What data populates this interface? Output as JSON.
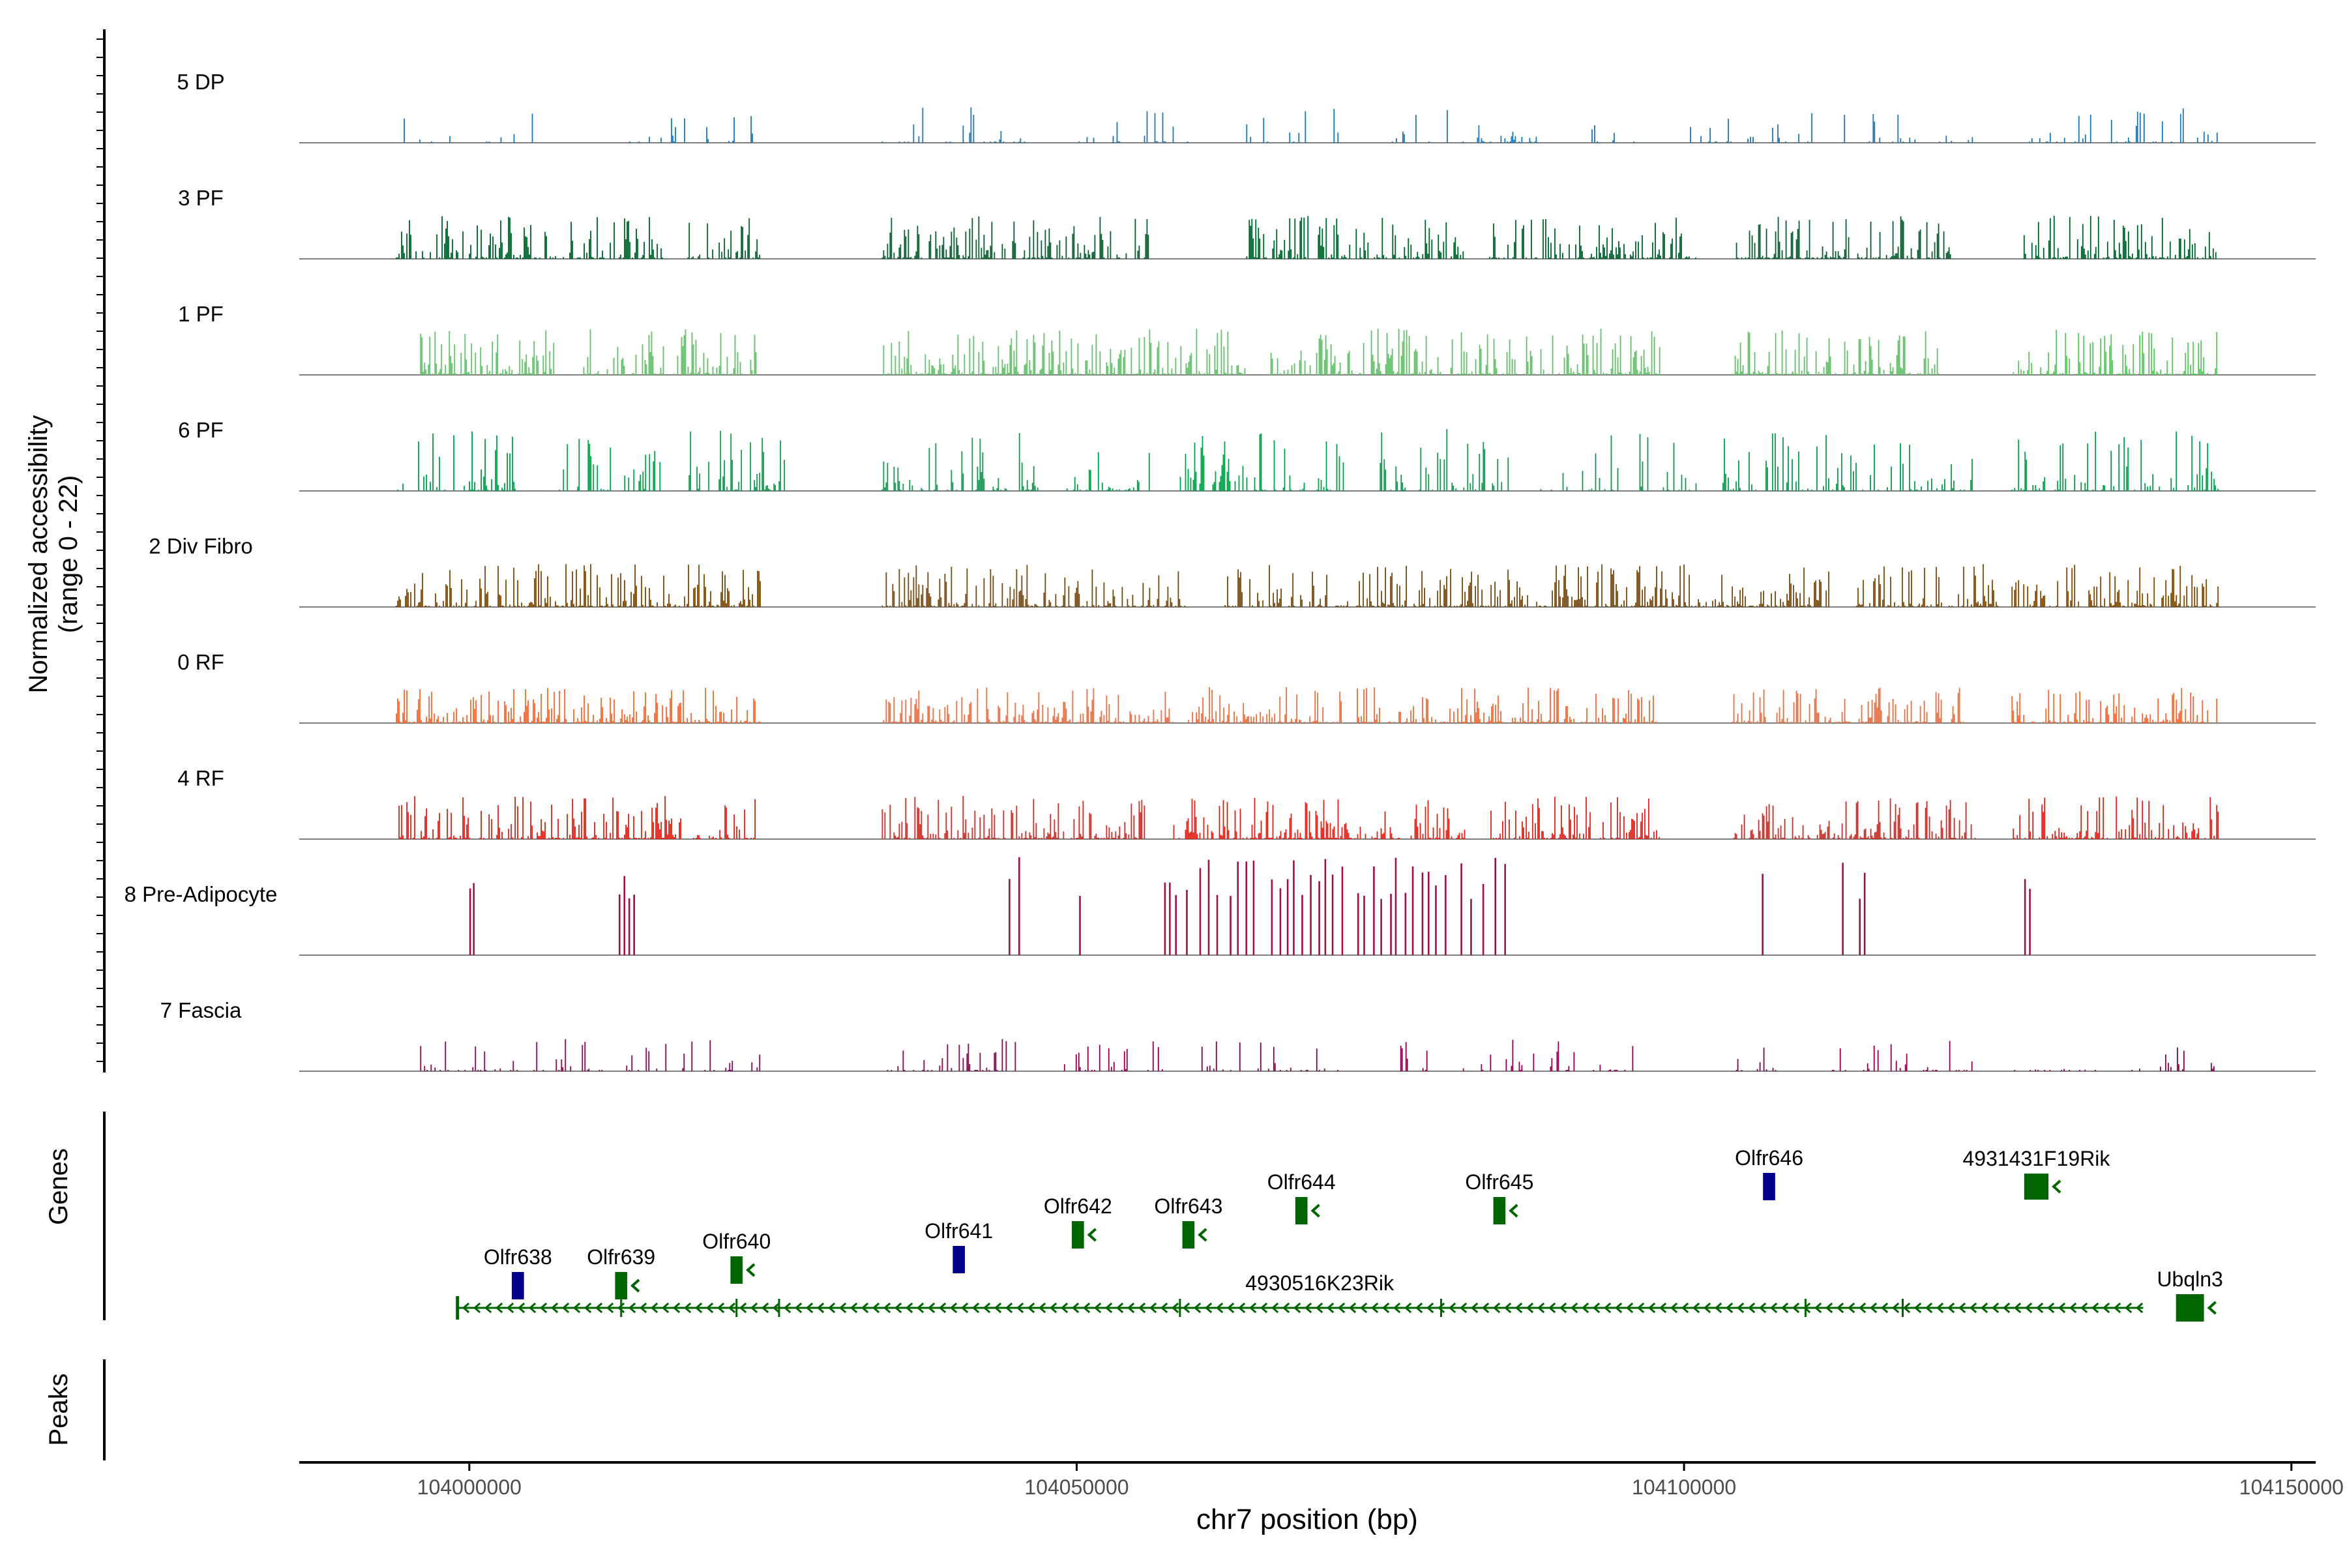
{
  "chart_data": {
    "type": "genome-track",
    "ylabel_line1": "Normalized accessibility",
    "ylabel_line2": "(range 0 - 22)",
    "y_range": [
      0,
      22
    ],
    "genes_label": "Genes",
    "peaks_label": "Peaks",
    "xlabel": "chr7 position (bp)",
    "x_range": [
      103986000,
      104152000
    ],
    "x_ticks": [
      104000000,
      104050000,
      104100000,
      104150000
    ],
    "x_tick_labels": [
      "104000000",
      "104050000",
      "104100000",
      "104150000"
    ],
    "tracks": [
      {
        "name": "5 DP",
        "color": "#1f77b4",
        "style": "sparse",
        "max_rel": 0.35,
        "regions": [
          [
            103994000,
            103999000
          ],
          [
            104001000,
            104006000
          ],
          [
            104013000,
            104024000
          ],
          [
            104034000,
            104046000
          ],
          [
            104050000,
            104060000
          ],
          [
            104064000,
            104072000
          ],
          [
            104076000,
            104082000
          ],
          [
            104083000,
            104088000
          ],
          [
            104092000,
            104096000
          ],
          [
            104100000,
            104112000
          ],
          [
            104113000,
            104124000
          ],
          [
            104128000,
            104144000
          ]
        ]
      },
      {
        "name": "3 PF",
        "color": "#00602b",
        "style": "dense",
        "max_rel": 0.42,
        "regions": [
          [
            103994000,
            104016000
          ],
          [
            104018000,
            104024000
          ],
          [
            104034000,
            104056000
          ],
          [
            104064000,
            104082000
          ],
          [
            104084000,
            104101000
          ],
          [
            104104000,
            104122000
          ],
          [
            104128000,
            104144000
          ]
        ]
      },
      {
        "name": "1 PF",
        "color": "#5cc463",
        "style": "dense",
        "max_rel": 0.45,
        "regions": [
          [
            103996000,
            104007000
          ],
          [
            104009000,
            104024000
          ],
          [
            104034000,
            104064000
          ],
          [
            104066000,
            104098000
          ],
          [
            104104000,
            104121000
          ],
          [
            104127000,
            104144000
          ]
        ]
      },
      {
        "name": "6 PF",
        "color": "#0a9b4c",
        "style": "mixed",
        "max_rel": 0.6,
        "regions": [
          [
            103994000,
            104004000
          ],
          [
            104007000,
            104016000
          ],
          [
            104018000,
            104026000
          ],
          [
            104034000,
            104044000
          ],
          [
            104044000,
            104047000
          ],
          [
            104049000,
            104056000
          ],
          [
            104058000,
            104072000
          ],
          [
            104075000,
            104086000
          ],
          [
            104088000,
            104101000
          ],
          [
            104103000,
            104124000
          ],
          [
            104127000,
            104144000
          ]
        ]
      },
      {
        "name": "2 Div Fibro",
        "color": "#7b4a0a",
        "style": "dense",
        "max_rel": 0.42,
        "regions": [
          [
            103994000,
            104024000
          ],
          [
            104034000,
            104059000
          ],
          [
            104062000,
            104112000
          ],
          [
            104114000,
            104126000
          ],
          [
            104127000,
            104144000
          ]
        ]
      },
      {
        "name": "0 RF",
        "color": "#f26b38",
        "style": "dense",
        "max_rel": 0.35,
        "regions": [
          [
            103994000,
            104024000
          ],
          [
            104034000,
            104058000
          ],
          [
            104059000,
            104072000
          ],
          [
            104073000,
            104098000
          ],
          [
            104104000,
            104123000
          ],
          [
            104127000,
            104144000
          ]
        ]
      },
      {
        "name": "4 RF",
        "color": "#d7261e",
        "style": "dense",
        "max_rel": 0.42,
        "regions": [
          [
            103994000,
            104024000
          ],
          [
            104034000,
            104056000
          ],
          [
            104058000,
            104082000
          ],
          [
            104084000,
            104098000
          ],
          [
            104104000,
            104124000
          ],
          [
            104127000,
            104144000
          ]
        ]
      },
      {
        "name": "8 Pre-Adipocyte",
        "color": "#a0103e",
        "style": "spikes",
        "max_rel": 0.96,
        "positions": [
          104000000,
          104000300,
          104012300,
          104012700,
          104013100,
          104013500,
          104044400,
          104045200,
          104050200,
          104057200,
          104057600,
          104058100,
          104059000,
          104060100,
          104060800,
          104061500,
          104062600,
          104063200,
          104063900,
          104064500,
          104066000,
          104066700,
          104067300,
          104067800,
          104068500,
          104069200,
          104069900,
          104070400,
          104071000,
          104071800,
          104073100,
          104073600,
          104074400,
          104075000,
          104075800,
          104076200,
          104077000,
          104077600,
          104078400,
          104078900,
          104079500,
          104080300,
          104081600,
          104082400,
          104083400,
          104084400,
          104085200,
          104106400,
          104113000,
          104114400,
          104114800,
          104128000,
          104128400
        ]
      },
      {
        "name": "7 Fascia",
        "color": "#8e0152",
        "style": "sparse",
        "max_rel": 0.32,
        "regions": [
          [
            103996000,
            104024000
          ],
          [
            104034000,
            104046000
          ],
          [
            104049000,
            104058000
          ],
          [
            104060000,
            104072000
          ],
          [
            104074000,
            104082000
          ],
          [
            104083000,
            104096000
          ],
          [
            104104000,
            104108000
          ],
          [
            104112000,
            104124000
          ],
          [
            104127000,
            104134000
          ],
          [
            104136000,
            104144000
          ]
        ]
      }
    ],
    "genes": [
      {
        "name": "Olfr638",
        "start": 104003500,
        "end": 104004500,
        "strand": "+",
        "color": "#00008b",
        "row": 5
      },
      {
        "name": "Olfr639",
        "start": 104012000,
        "end": 104013000,
        "strand": "-",
        "color": "#006400",
        "row": 5
      },
      {
        "name": "Olfr640",
        "start": 104021500,
        "end": 104022500,
        "strand": "-",
        "color": "#006400",
        "row": 4
      },
      {
        "name": "Olfr641",
        "start": 104039800,
        "end": 104040800,
        "strand": "+",
        "color": "#00008b",
        "row": 3
      },
      {
        "name": "Olfr642",
        "start": 104049600,
        "end": 104050600,
        "strand": "-",
        "color": "#006400",
        "row": 2
      },
      {
        "name": "Olfr643",
        "start": 104058700,
        "end": 104059700,
        "strand": "-",
        "color": "#006400",
        "row": 2
      },
      {
        "name": "Olfr644",
        "start": 104068000,
        "end": 104069000,
        "strand": "-",
        "color": "#006400",
        "row": 1
      },
      {
        "name": "Olfr645",
        "start": 104084300,
        "end": 104085300,
        "strand": "-",
        "color": "#006400",
        "row": 1
      },
      {
        "name": "Olfr646",
        "start": 104106500,
        "end": 104107500,
        "strand": "+",
        "color": "#00008b",
        "row": 0
      },
      {
        "name": "4931431F19Rik",
        "start": 104128000,
        "end": 104130000,
        "strand": "-",
        "color": "#006400",
        "row": 0
      },
      {
        "name": "4930516K23Rik",
        "start": 103999000,
        "end": 104137800,
        "strand": "-",
        "color": "#006400",
        "row": 6,
        "long": true
      },
      {
        "name": "Ubqln3",
        "start": 104140500,
        "end": 104142800,
        "strand": "-",
        "color": "#006400",
        "row": 6
      }
    ]
  }
}
